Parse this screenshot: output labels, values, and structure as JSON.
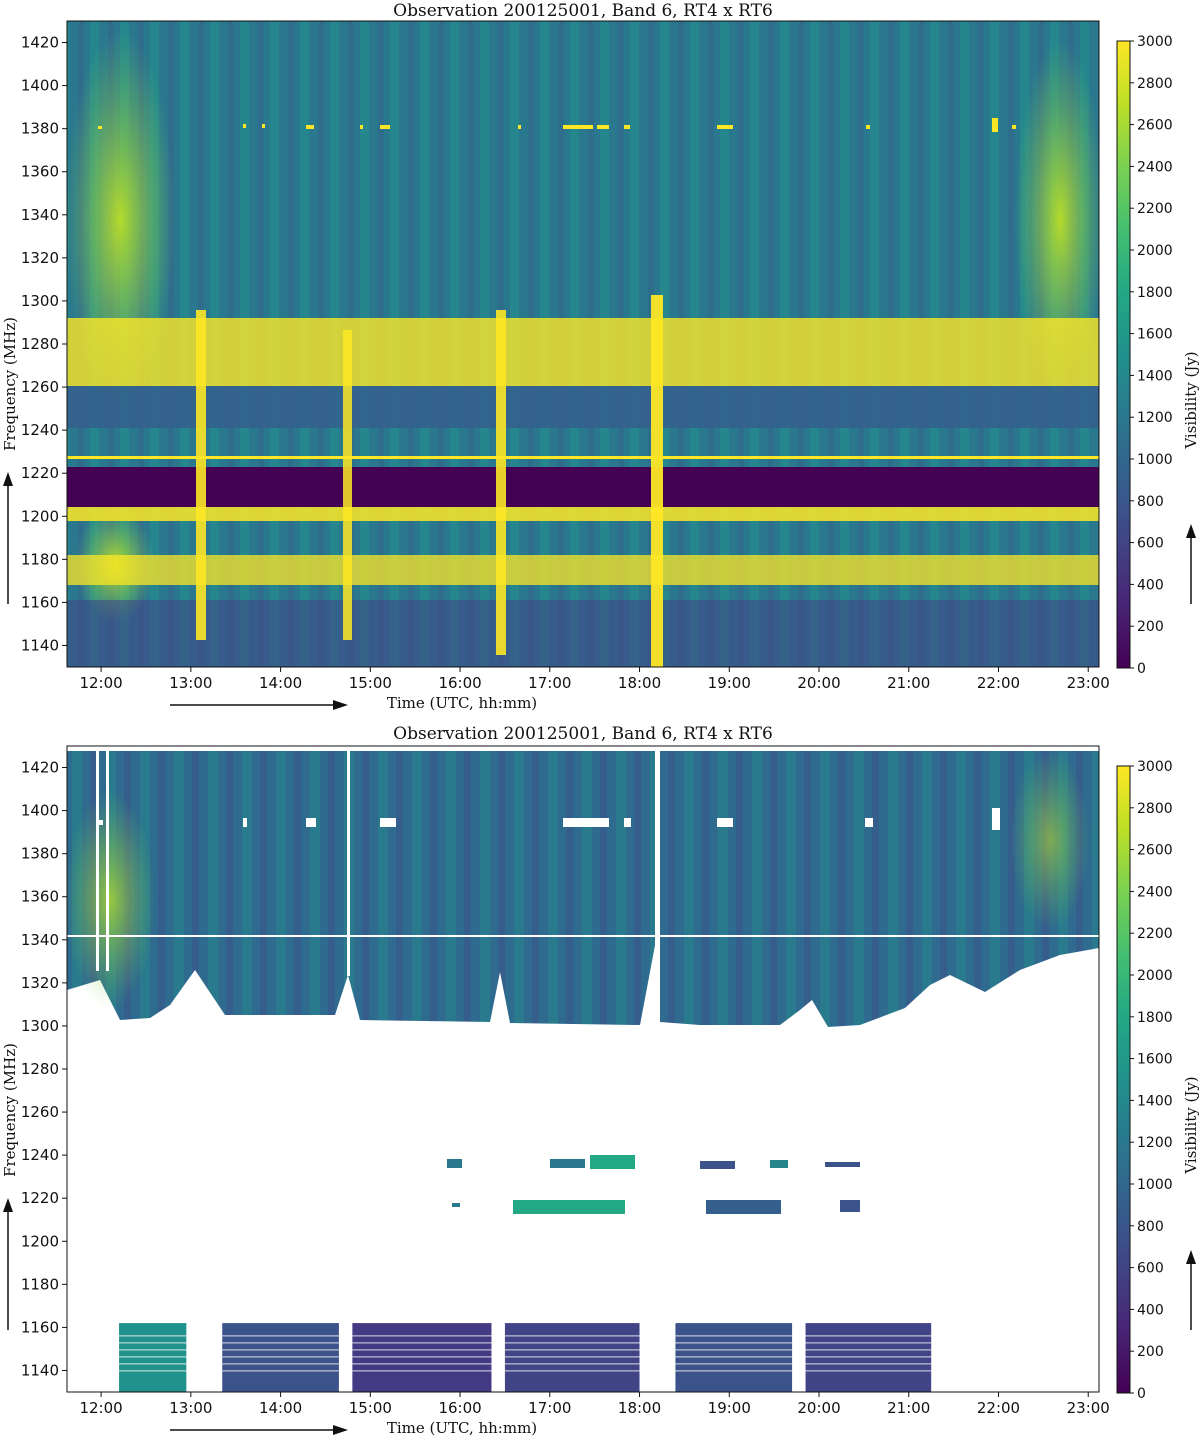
{
  "chart_data": [
    {
      "type": "heatmap",
      "panel": "raw",
      "title": "Observation 200125001, Band 6, RT4 x RT6",
      "xlabel": "Time (UTC, hh:mm)",
      "ylabel": "Frequency (MHz)",
      "colorbar_label": "Visibility (Jy)",
      "colormap": "viridis",
      "x_ticks": [
        "12:00",
        "13:00",
        "14:00",
        "15:00",
        "16:00",
        "17:00",
        "18:00",
        "19:00",
        "20:00",
        "21:00",
        "22:00",
        "23:00"
      ],
      "xlim_hours": [
        11.62,
        23.12
      ],
      "y_ticks": [
        1140,
        1160,
        1180,
        1200,
        1220,
        1240,
        1260,
        1280,
        1300,
        1320,
        1340,
        1360,
        1380,
        1400,
        1420
      ],
      "ylim": [
        1130,
        1430
      ],
      "colorbar_ticks": [
        0,
        200,
        400,
        600,
        800,
        1000,
        1200,
        1400,
        1600,
        1800,
        2000,
        2200,
        2400,
        2600,
        2800,
        3000
      ],
      "clim": [
        0,
        3000
      ],
      "zero_band_mhz": [
        1204,
        1223
      ],
      "rfi_bands_mhz": [
        [
          1262,
          1295
        ],
        [
          1168,
          1185
        ]
      ],
      "rfi_burst_times_hours": [
        13.05,
        14.75,
        16.45,
        18.2
      ]
    },
    {
      "type": "heatmap",
      "panel": "flagged",
      "title": "Observation 200125001, Band 6, RT4 x RT6",
      "xlabel": "Time (UTC, hh:mm)",
      "ylabel": "Frequency (MHz)",
      "colorbar_label": "Visibility (Jy)",
      "colormap": "viridis",
      "x_ticks": [
        "12:00",
        "13:00",
        "14:00",
        "15:00",
        "16:00",
        "17:00",
        "18:00",
        "19:00",
        "20:00",
        "21:00",
        "22:00",
        "23:00"
      ],
      "xlim_hours": [
        11.62,
        23.12
      ],
      "y_ticks": [
        1140,
        1160,
        1180,
        1200,
        1220,
        1240,
        1260,
        1280,
        1300,
        1320,
        1340,
        1360,
        1380,
        1400,
        1420
      ],
      "ylim": [
        1130,
        1430
      ],
      "colorbar_ticks": [
        0,
        200,
        400,
        600,
        800,
        1000,
        1200,
        1400,
        1600,
        1800,
        2000,
        2200,
        2400,
        2600,
        2800,
        3000
      ],
      "clim": [
        0,
        3000
      ],
      "unflagged_low_blocks_hours": [
        [
          12.2,
          12.95
        ],
        [
          13.35,
          14.65
        ],
        [
          14.8,
          16.35
        ],
        [
          16.5,
          18.0
        ],
        [
          18.4,
          19.7
        ],
        [
          19.85,
          21.25
        ]
      ],
      "low_block_mhz": [
        1130,
        1162
      ],
      "upper_region_floor_mhz": 1300
    }
  ]
}
